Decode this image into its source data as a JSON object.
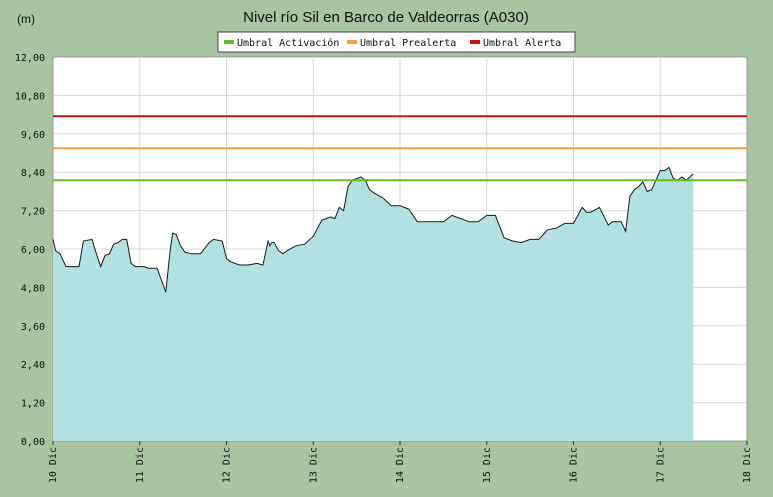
{
  "chart_data": {
    "type": "area",
    "title": "Nivel río Sil en Barco de Valdeorras  (A030)",
    "ylabel": "(m)",
    "xlabel": "",
    "ylim": [
      0,
      12
    ],
    "xlim": [
      10,
      18
    ],
    "grid": true,
    "legend_position": "top-center",
    "y_ticks": [
      "0,00",
      "1,20",
      "2,40",
      "3,60",
      "4,80",
      "6,00",
      "7,20",
      "8,40",
      "9,60",
      "10,80",
      "12,00"
    ],
    "x_ticks": [
      "10 Dic",
      "11 Dic",
      "12 Dic",
      "13 Dic",
      "14 Dic",
      "15 Dic",
      "16 Dic",
      "17 Dic",
      "18 Dic"
    ],
    "colors": {
      "area_fill": "#b1e2e1",
      "area_line": "#1a1a1a",
      "activation": "#66bb22",
      "prealert": "#f0a040",
      "alert": "#cc1111",
      "plot_bg": "#ffffff",
      "grid": "#d8d8d8"
    },
    "thresholds": [
      {
        "name": "Umbral Activación",
        "value": 8.15,
        "color": "#66bb22"
      },
      {
        "name": "Umbral Prealerta",
        "value": 9.15,
        "color": "#f0a040"
      },
      {
        "name": "Umbral Alerta",
        "value": 10.15,
        "color": "#cc1111"
      }
    ],
    "series": [
      {
        "x": [
          10.0,
          10.03,
          10.08,
          10.15,
          10.25,
          10.3,
          10.35,
          10.45,
          10.5,
          10.55,
          10.6,
          10.65,
          10.7,
          10.75,
          10.8,
          10.85,
          10.9,
          10.95,
          11.0,
          11.05,
          11.1,
          11.2,
          11.3,
          11.35,
          11.38,
          11.42,
          11.47,
          11.52,
          11.6,
          11.7,
          11.8,
          11.85,
          11.95,
          12.0,
          12.05,
          12.15,
          12.25,
          12.35,
          12.42,
          12.48,
          12.5,
          12.52,
          12.55,
          12.6,
          12.65,
          12.7,
          12.8,
          12.9,
          13.0,
          13.1,
          13.2,
          13.25,
          13.3,
          13.35,
          13.4,
          13.45,
          13.55,
          13.6,
          13.65,
          13.7,
          13.8,
          13.9,
          14.0,
          14.1,
          14.2,
          14.3,
          14.4,
          14.5,
          14.6,
          14.7,
          14.8,
          14.9,
          15.0,
          15.1,
          15.2,
          15.3,
          15.4,
          15.5,
          15.6,
          15.7,
          15.8,
          15.9,
          16.0,
          16.1,
          16.15,
          16.2,
          16.3,
          16.4,
          16.45,
          16.5,
          16.55,
          16.6,
          16.65,
          16.7,
          16.75,
          16.8,
          16.85,
          16.9,
          16.95,
          17.0,
          17.05,
          17.1,
          17.15,
          17.2,
          17.25,
          17.3,
          17.38
        ],
        "values": [
          6.3,
          5.95,
          5.85,
          5.45,
          5.45,
          5.45,
          6.25,
          6.3,
          5.85,
          5.45,
          5.8,
          5.85,
          6.15,
          6.2,
          6.3,
          6.3,
          5.55,
          5.45,
          5.45,
          5.45,
          5.4,
          5.4,
          4.65,
          5.95,
          6.5,
          6.45,
          6.1,
          5.9,
          5.85,
          5.85,
          6.2,
          6.3,
          6.25,
          5.7,
          5.6,
          5.5,
          5.5,
          5.55,
          5.5,
          6.25,
          6.1,
          6.2,
          6.2,
          5.95,
          5.85,
          5.95,
          6.1,
          6.15,
          6.4,
          6.9,
          7.0,
          6.95,
          7.3,
          7.2,
          7.95,
          8.15,
          8.25,
          8.15,
          7.85,
          7.75,
          7.6,
          7.35,
          7.35,
          7.25,
          6.85,
          6.85,
          6.85,
          6.85,
          7.05,
          6.95,
          6.85,
          6.85,
          7.05,
          7.05,
          6.35,
          6.25,
          6.2,
          6.3,
          6.3,
          6.6,
          6.65,
          6.8,
          6.8,
          7.3,
          7.15,
          7.15,
          7.3,
          6.75,
          6.85,
          6.85,
          6.85,
          6.55,
          7.65,
          7.85,
          7.95,
          8.1,
          7.8,
          7.85,
          8.15,
          8.45,
          8.45,
          8.55,
          8.2,
          8.15,
          8.25,
          8.15,
          8.35
        ]
      }
    ]
  }
}
